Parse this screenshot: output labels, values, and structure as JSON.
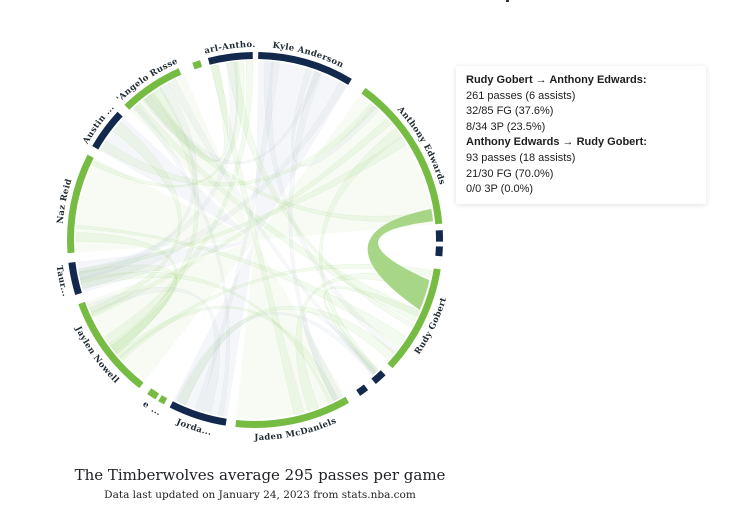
{
  "chart_data": {
    "type": "chord",
    "title": "The Timberwolves average 295 passes per game",
    "subtitle": "Data last updated on January 24, 2023 from stats.nba.com",
    "colors": {
      "green": "#76bc43",
      "navy": "#12284c",
      "green_chord": "#9fd27a",
      "navy_chord": "#b9c3cf"
    },
    "players": [
      {
        "label": "Kyle Anderson",
        "color": "navy"
      },
      {
        "label": "Anthony Edwards",
        "color": "green"
      },
      {
        "label": "",
        "color": "navy"
      },
      {
        "label": "",
        "color": "navy"
      },
      {
        "label": "Rudy Gobert",
        "color": "green"
      },
      {
        "label": "",
        "color": "navy"
      },
      {
        "label": "",
        "color": "navy"
      },
      {
        "label": "Jaden McDaniels",
        "color": "green"
      },
      {
        "label": "Jorda...",
        "color": "navy"
      },
      {
        "label": "...",
        "color": "green"
      },
      {
        "label": "e",
        "color": "green"
      },
      {
        "label": "Jaylen Nowell",
        "color": "green"
      },
      {
        "label": "Taur...",
        "color": "navy"
      },
      {
        "label": "Naz Reid",
        "color": "green"
      },
      {
        "label": "Austin ...",
        "color": "navy"
      },
      {
        "label": "D'Angelo Russell",
        "color": "green"
      },
      {
        "label": "",
        "color": "green"
      },
      {
        "label": "Karl-Antho...",
        "color": "navy"
      }
    ],
    "highlighted_link": {
      "source": "Rudy Gobert",
      "target": "Anthony Edwards",
      "forward_passes": 261,
      "reverse_passes": 93
    }
  },
  "tooltip": {
    "lines": [
      {
        "text": "Rudy Gobert → Anthony Edwards:",
        "bold": true
      },
      {
        "text": "261 passes (6 assists)",
        "bold": false
      },
      {
        "text": "32/85 FG (37.6%)",
        "bold": false
      },
      {
        "text": "8/34 3P (23.5%)",
        "bold": false
      },
      {
        "text": "Anthony Edwards → Rudy Gobert:",
        "bold": true
      },
      {
        "text": "93 passes (18 assists)",
        "bold": false
      },
      {
        "text": "21/30 FG (70.0%)",
        "bold": false
      },
      {
        "text": "0/0 3P (0.0%)",
        "bold": false
      }
    ]
  }
}
